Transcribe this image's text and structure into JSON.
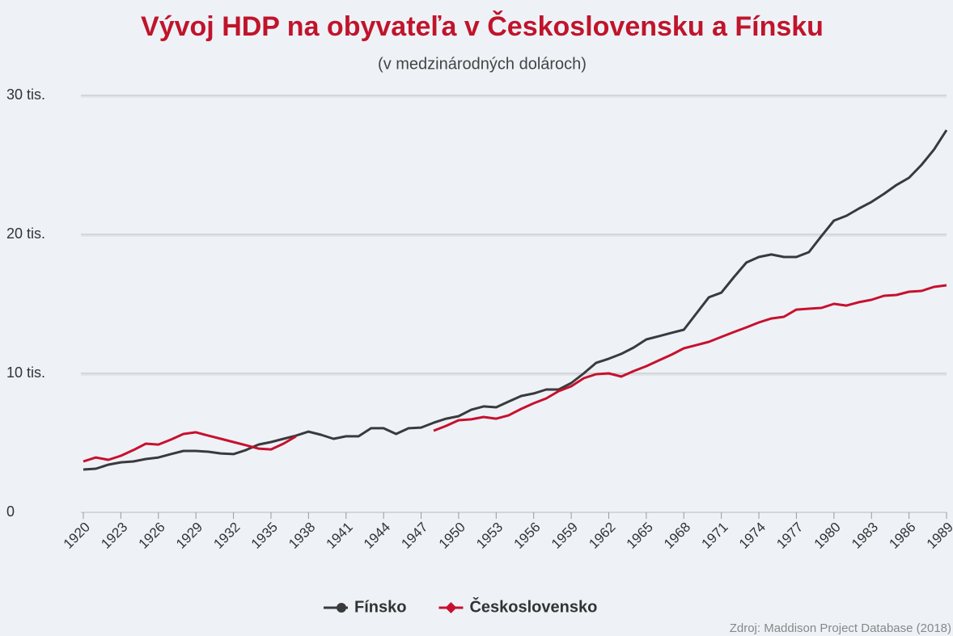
{
  "chart_data": {
    "type": "line",
    "title": "Vývoj HDP na obyvateľa v Československu a Fínsku",
    "subtitle": "(v medzinárodných dolároch)",
    "source": "Zdroj: Maddison Project Database (2018)",
    "x": [
      1920,
      1921,
      1922,
      1923,
      1924,
      1925,
      1926,
      1927,
      1928,
      1929,
      1930,
      1931,
      1932,
      1933,
      1934,
      1935,
      1936,
      1937,
      1938,
      1939,
      1940,
      1941,
      1942,
      1943,
      1944,
      1945,
      1946,
      1947,
      1948,
      1949,
      1950,
      1951,
      1952,
      1953,
      1954,
      1955,
      1956,
      1957,
      1958,
      1959,
      1960,
      1961,
      1962,
      1963,
      1964,
      1965,
      1966,
      1967,
      1968,
      1969,
      1970,
      1971,
      1972,
      1973,
      1974,
      1975,
      1976,
      1977,
      1978,
      1979,
      1980,
      1981,
      1982,
      1983,
      1984,
      1985,
      1986,
      1987,
      1988,
      1989
    ],
    "xlim": [
      1920,
      1989
    ],
    "xticks": [
      1920,
      1923,
      1926,
      1929,
      1932,
      1935,
      1938,
      1941,
      1944,
      1947,
      1950,
      1953,
      1956,
      1959,
      1962,
      1965,
      1968,
      1971,
      1974,
      1977,
      1980,
      1983,
      1986,
      1989
    ],
    "ylim": [
      0,
      30000
    ],
    "yticks": [
      0,
      {
        "value": 10000,
        "label": "10 tis."
      },
      {
        "value": 20000,
        "label": "20 tis."
      },
      {
        "value": 30000,
        "label": "30 tis."
      }
    ],
    "grid": true,
    "legend": "bottom",
    "series": [
      {
        "name": "Fínsko",
        "color": "#3a3a3c",
        "marker": "circle",
        "values": [
          3080,
          3140,
          3430,
          3600,
          3660,
          3840,
          3950,
          4190,
          4420,
          4420,
          4360,
          4240,
          4190,
          4480,
          4880,
          5060,
          5290,
          5520,
          5810,
          5580,
          5290,
          5470,
          5470,
          6050,
          6050,
          5640,
          6050,
          6100,
          6450,
          6740,
          6920,
          7380,
          7620,
          7560,
          7970,
          8370,
          8550,
          8840,
          8840,
          9300,
          10000,
          10760,
          11050,
          11400,
          11860,
          12440,
          12670,
          12910,
          13140,
          14300,
          15470,
          15810,
          16920,
          17970,
          18370,
          18550,
          18370,
          18370,
          18720,
          19880,
          20990,
          21340,
          21860,
          22330,
          22910,
          23550,
          24070,
          25000,
          26100,
          27500
        ]
      },
      {
        "name": "Československo",
        "color": "#c8102e",
        "marker": "diamond",
        "values": [
          3660,
          3950,
          3780,
          4070,
          4480,
          4940,
          4880,
          5230,
          5640,
          5760,
          5520,
          5290,
          5060,
          4830,
          4590,
          4530,
          4940,
          5470,
          null,
          null,
          null,
          null,
          null,
          null,
          null,
          null,
          null,
          null,
          5870,
          6220,
          6630,
          6690,
          6860,
          6740,
          6980,
          7440,
          7850,
          8200,
          8720,
          9070,
          9650,
          9940,
          10000,
          9770,
          10170,
          10520,
          10930,
          11340,
          11800,
          12030,
          12270,
          12620,
          12970,
          13310,
          13660,
          13950,
          14070,
          14590,
          14650,
          14710,
          15000,
          14880,
          15120,
          15290,
          15580,
          15640,
          15870,
          15930,
          16220,
          16340
        ]
      }
    ]
  }
}
